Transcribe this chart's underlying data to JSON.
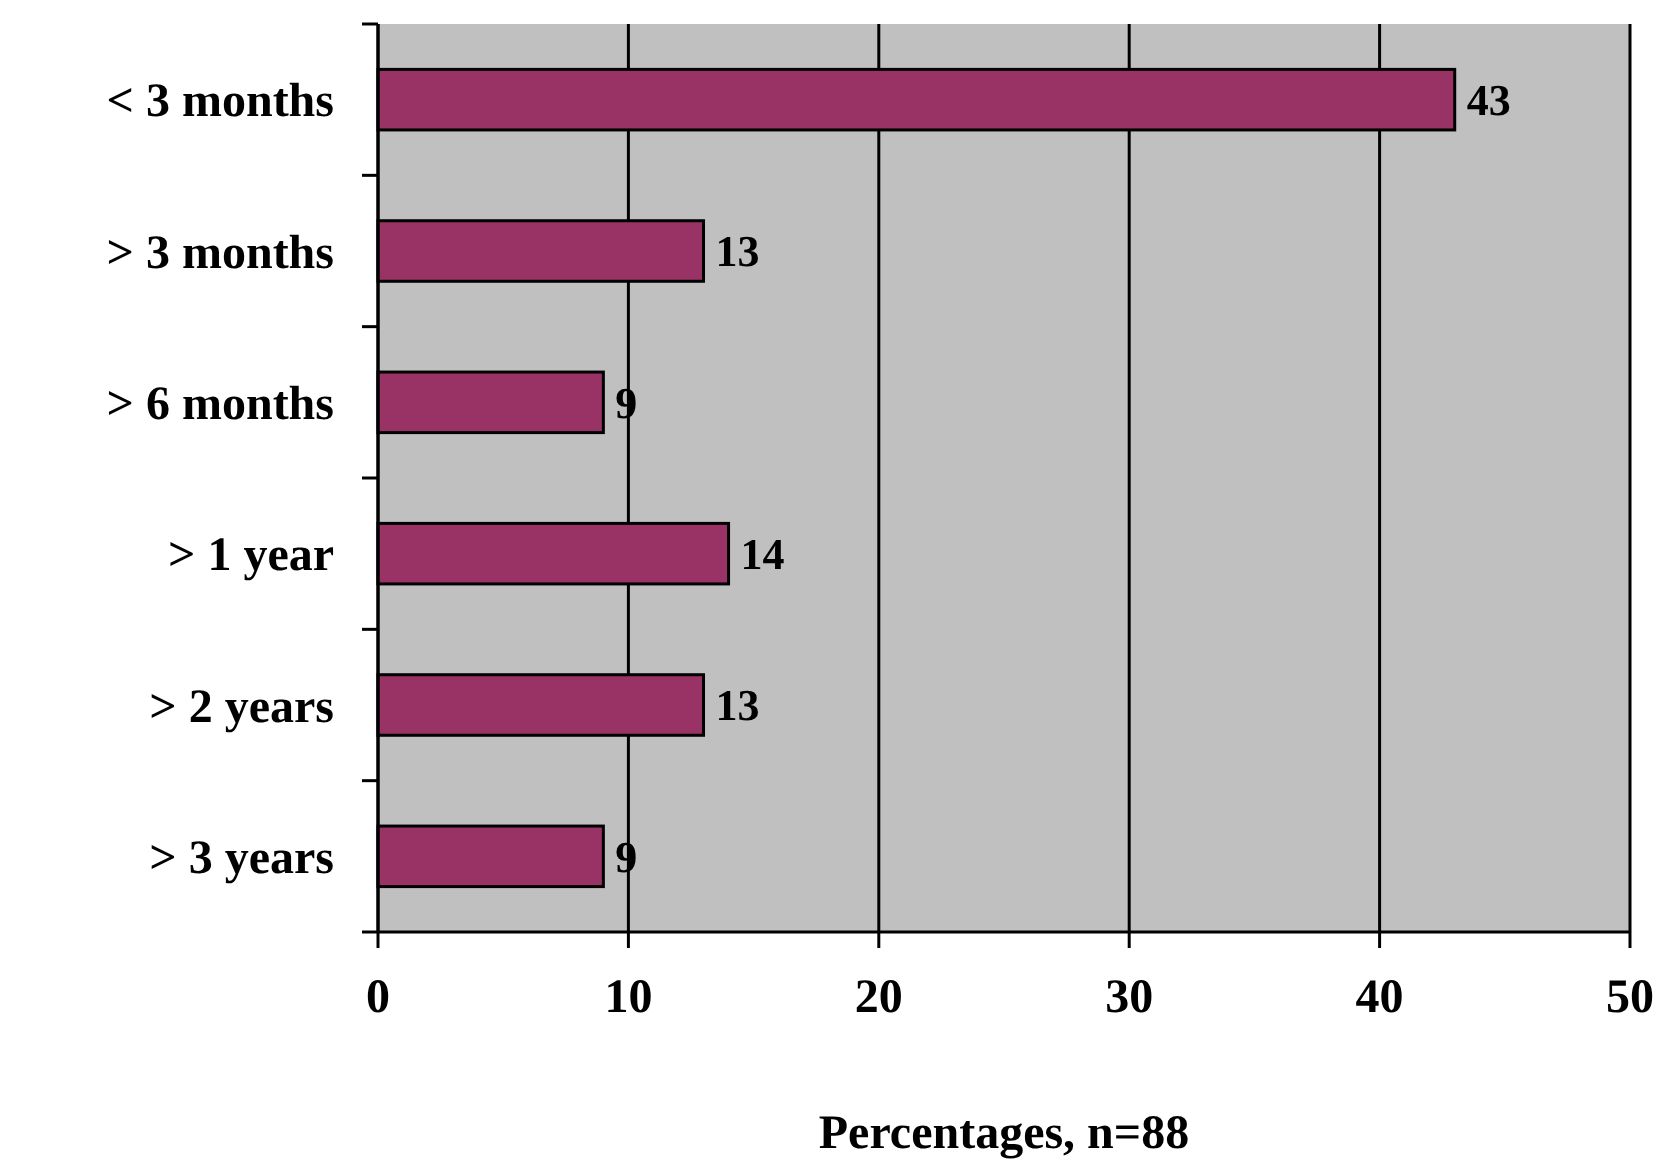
{
  "chart_data": {
    "type": "bar",
    "orientation": "horizontal",
    "xlabel": "Percentages, n=88",
    "categories": [
      "< 3 months",
      "> 3 months",
      "> 6 months",
      "> 1 year",
      "> 2 years",
      "> 3 years"
    ],
    "values": [
      43,
      13,
      9,
      14,
      13,
      9
    ],
    "color": "#993366",
    "xlim": [
      0,
      50
    ],
    "xticks": [
      0,
      10,
      20,
      30,
      40,
      50
    ],
    "grid": "x",
    "data_labels": true
  }
}
